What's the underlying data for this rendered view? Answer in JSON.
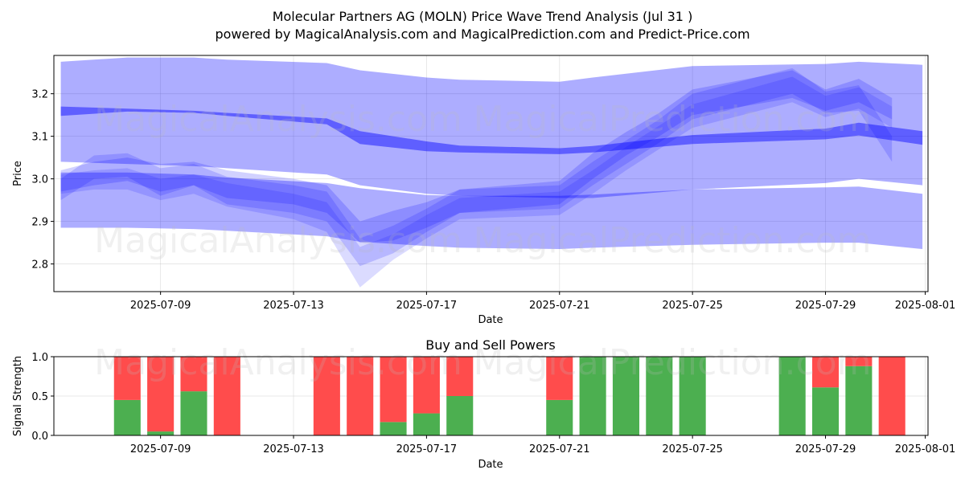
{
  "watermarks": [
    "MagicalAnalysis.com",
    "MagicalPrediction.com"
  ],
  "colors": {
    "band": "#0000ff",
    "buy": "#4caf50",
    "sell": "#ff4c4c",
    "grid": "#b0b0b0"
  },
  "chart_data": [
    {
      "type": "area",
      "title": "Molecular Partners AG (MOLN) Price Wave Trend Analysis (Jul 31 )",
      "subtitle": "powered by MagicalAnalysis.com and MagicalPrediction.com and Predict-Price.com",
      "xlabel": "Date",
      "ylabel": "Price",
      "xlim": [
        "2025-07-05 19:00",
        "2025-08-01 02:00"
      ],
      "ylim": [
        2.735,
        3.29
      ],
      "x_ticks": [
        "2025-07-09",
        "2025-07-13",
        "2025-07-17",
        "2025-07-21",
        "2025-07-25",
        "2025-07-29",
        "2025-08-01"
      ],
      "y_ticks": [
        2.8,
        2.9,
        3.0,
        3.1,
        3.2
      ],
      "grid": true,
      "series": [
        {
          "x": [
            "2025-07-06",
            "2025-07-08",
            "2025-07-10",
            "2025-07-11",
            "2025-07-14",
            "2025-07-15",
            "2025-07-17",
            "2025-07-18",
            "2025-07-21",
            "2025-07-22",
            "2025-07-25",
            "2025-07-29",
            "2025-07-30",
            "2025-07-31 22:00"
          ],
          "upper": [
            3.275,
            3.285,
            3.285,
            3.28,
            3.272,
            3.255,
            3.238,
            3.233,
            3.228,
            3.238,
            3.265,
            3.27,
            3.275,
            3.268
          ],
          "lower": [
            3.04,
            3.035,
            3.03,
            3.025,
            3.01,
            2.985,
            2.965,
            2.96,
            2.955,
            2.955,
            2.975,
            2.99,
            3.0,
            2.985
          ]
        },
        {
          "x": [
            "2025-07-06",
            "2025-07-08",
            "2025-07-10",
            "2025-07-11",
            "2025-07-14",
            "2025-07-15",
            "2025-07-17",
            "2025-07-18",
            "2025-07-21",
            "2025-07-22",
            "2025-07-25",
            "2025-07-29",
            "2025-07-30",
            "2025-07-31 22:00"
          ],
          "upper": [
            3.015,
            3.015,
            3.01,
            3.003,
            2.99,
            2.978,
            2.962,
            2.96,
            2.96,
            2.963,
            2.975,
            2.98,
            2.982,
            2.965
          ],
          "lower": [
            2.885,
            2.885,
            2.882,
            2.878,
            2.865,
            2.852,
            2.842,
            2.838,
            2.835,
            2.838,
            2.845,
            2.85,
            2.85,
            2.835
          ]
        },
        {
          "x": [
            "2025-07-06",
            "2025-07-08",
            "2025-07-10",
            "2025-07-11",
            "2025-07-14",
            "2025-07-15",
            "2025-07-17",
            "2025-07-18",
            "2025-07-21",
            "2025-07-22",
            "2025-07-25",
            "2025-07-29",
            "2025-07-30",
            "2025-07-31 22:00"
          ],
          "upper": [
            3.17,
            3.165,
            3.16,
            3.155,
            3.142,
            3.112,
            3.088,
            3.078,
            3.072,
            3.077,
            3.103,
            3.118,
            3.132,
            3.112
          ],
          "lower": [
            3.148,
            3.158,
            3.155,
            3.148,
            3.128,
            3.082,
            3.065,
            3.062,
            3.058,
            3.062,
            3.082,
            3.093,
            3.102,
            3.08
          ]
        },
        {
          "x": [
            "2025-07-06",
            "2025-07-07",
            "2025-07-08",
            "2025-07-09",
            "2025-07-10",
            "2025-07-11",
            "2025-07-13",
            "2025-07-14",
            "2025-07-15",
            "2025-07-16",
            "2025-07-17",
            "2025-07-18",
            "2025-07-21",
            "2025-07-22",
            "2025-07-23",
            "2025-07-24",
            "2025-07-25",
            "2025-07-28",
            "2025-07-29",
            "2025-07-30",
            "2025-07-31"
          ],
          "upper": [
            3.02,
            3.04,
            3.05,
            3.035,
            3.04,
            3.02,
            3.0,
            2.985,
            2.9,
            2.925,
            2.945,
            2.975,
            2.995,
            3.06,
            3.11,
            3.155,
            3.21,
            3.255,
            3.21,
            3.235,
            3.19
          ],
          "lower": [
            2.97,
            2.985,
            2.995,
            2.97,
            2.985,
            2.955,
            2.94,
            2.92,
            2.85,
            2.855,
            2.885,
            2.92,
            2.94,
            3.0,
            3.055,
            3.1,
            3.15,
            3.19,
            3.16,
            3.18,
            3.14
          ]
        },
        {
          "x": [
            "2025-07-06",
            "2025-07-07",
            "2025-07-08",
            "2025-07-09",
            "2025-07-10",
            "2025-07-11",
            "2025-07-13",
            "2025-07-14",
            "2025-07-15",
            "2025-07-16",
            "2025-07-17",
            "2025-07-18",
            "2025-07-21",
            "2025-07-22",
            "2025-07-23",
            "2025-07-24",
            "2025-07-25",
            "2025-07-28",
            "2025-07-29",
            "2025-07-30",
            "2025-07-31"
          ],
          "upper": [
            3.0,
            3.055,
            3.06,
            3.025,
            3.035,
            3.005,
            2.985,
            2.97,
            2.86,
            2.89,
            2.93,
            2.975,
            2.985,
            3.04,
            3.09,
            3.14,
            3.2,
            3.26,
            3.205,
            3.22,
            3.1
          ],
          "lower": [
            2.95,
            3.0,
            3.005,
            2.96,
            2.985,
            2.94,
            2.92,
            2.9,
            2.795,
            2.825,
            2.875,
            2.92,
            2.93,
            2.985,
            3.035,
            3.085,
            3.14,
            3.2,
            3.155,
            3.16,
            3.04
          ]
        },
        {
          "x": [
            "2025-07-06",
            "2025-07-07",
            "2025-07-08",
            "2025-07-09",
            "2025-07-10",
            "2025-07-11",
            "2025-07-13",
            "2025-07-14",
            "2025-07-15",
            "2025-07-16",
            "2025-07-17",
            "2025-07-18",
            "2025-07-21",
            "2025-07-22",
            "2025-07-23",
            "2025-07-24",
            "2025-07-25",
            "2025-07-28",
            "2025-07-29",
            "2025-07-30",
            "2025-07-31"
          ],
          "upper": [
            3.01,
            3.02,
            3.025,
            3.0,
            3.01,
            2.99,
            2.965,
            2.945,
            2.84,
            2.87,
            2.915,
            2.955,
            2.97,
            3.02,
            3.075,
            3.125,
            3.175,
            3.24,
            3.195,
            3.215,
            3.17
          ],
          "lower": [
            2.965,
            2.975,
            2.975,
            2.95,
            2.965,
            2.935,
            2.905,
            2.875,
            2.745,
            2.81,
            2.86,
            2.905,
            2.915,
            2.965,
            3.02,
            3.07,
            3.12,
            3.18,
            3.145,
            3.165,
            3.12
          ]
        }
      ]
    },
    {
      "type": "bar",
      "title": "Buy and Sell Powers",
      "xlabel": "Date",
      "ylabel": "Signal Strength",
      "ylim": [
        0,
        1
      ],
      "y_ticks": [
        "0.0",
        "0.5",
        "1.0"
      ],
      "x_ticks": [
        "2025-07-09",
        "2025-07-13",
        "2025-07-17",
        "2025-07-21",
        "2025-07-25",
        "2025-07-29",
        "2025-08-01"
      ],
      "grid": true,
      "categories": [
        "2025-07-08",
        "2025-07-09",
        "2025-07-10",
        "2025-07-11",
        "2025-07-14",
        "2025-07-15",
        "2025-07-16",
        "2025-07-17",
        "2025-07-18",
        "2025-07-21",
        "2025-07-22",
        "2025-07-23",
        "2025-07-24",
        "2025-07-25",
        "2025-07-28",
        "2025-07-29",
        "2025-07-30",
        "2025-07-31"
      ],
      "series": [
        {
          "name": "buy",
          "values": [
            0.45,
            0.05,
            0.56,
            0.0,
            0.0,
            0.0,
            0.17,
            0.28,
            0.5,
            0.45,
            1.0,
            1.0,
            1.0,
            1.0,
            1.0,
            0.61,
            0.88,
            0.0
          ]
        },
        {
          "name": "sell",
          "values": [
            0.55,
            0.95,
            0.44,
            1.0,
            1.0,
            1.0,
            0.83,
            0.72,
            0.5,
            0.55,
            0.0,
            0.0,
            0.0,
            0.0,
            0.0,
            0.39,
            0.12,
            1.0
          ]
        }
      ]
    }
  ]
}
